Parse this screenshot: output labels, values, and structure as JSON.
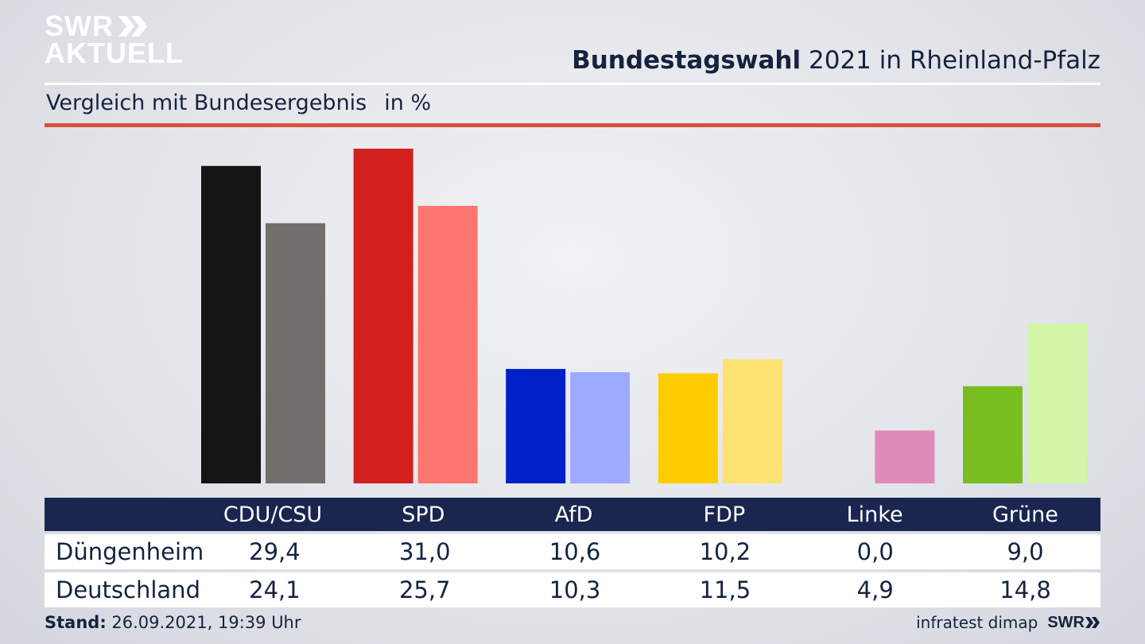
{
  "logo": {
    "line1": "SWR",
    "line2": "AKTUELL"
  },
  "header": {
    "title_bold": "Bundestagswahl",
    "title_rest": "2021 in Rheinland-Pfalz"
  },
  "subheader": {
    "text": "Vergleich mit Bundesergebnis",
    "unit": "in %"
  },
  "colors": {
    "CDU/CSU": [
      "#141414",
      "#72706d"
    ],
    "SPD": [
      "#d41f1f",
      "#ff7570"
    ],
    "AfD": [
      "#0021c8",
      "#9eaaff"
    ],
    "FDP": [
      "#ffcc00",
      "#fde272"
    ],
    "Linke": [
      "#bf3d8c",
      "#e08ab8"
    ],
    "Grüne": [
      "#78be20",
      "#d3f5a8"
    ],
    "accent_rule": "#d9503f",
    "table_header": "#1a2650"
  },
  "chart_data": {
    "type": "bar",
    "categories": [
      "CDU/CSU",
      "SPD",
      "AfD",
      "FDP",
      "Linke",
      "Grüne"
    ],
    "series": [
      {
        "name": "Düngenheim",
        "values": [
          29.4,
          31.0,
          10.6,
          10.2,
          0.0,
          9.0
        ]
      },
      {
        "name": "Deutschland",
        "values": [
          24.1,
          25.7,
          10.3,
          11.5,
          4.9,
          14.8
        ]
      }
    ],
    "ylim": [
      0,
      31.0
    ]
  },
  "table": {
    "headers": [
      "CDU/CSU",
      "SPD",
      "AfD",
      "FDP",
      "Linke",
      "Grüne"
    ],
    "rows": [
      {
        "label": "Düngenheim",
        "values": [
          "29,4",
          "31,0",
          "10,6",
          "10,2",
          "0,0",
          "9,0"
        ]
      },
      {
        "label": "Deutschland",
        "values": [
          "24,1",
          "25,7",
          "10,3",
          "11,5",
          "4,9",
          "14,8"
        ]
      }
    ]
  },
  "footer": {
    "stand_label": "Stand:",
    "stand_value": "26.09.2021, 19:39 Uhr",
    "source": "infratest dimap",
    "brand": "SWR"
  }
}
